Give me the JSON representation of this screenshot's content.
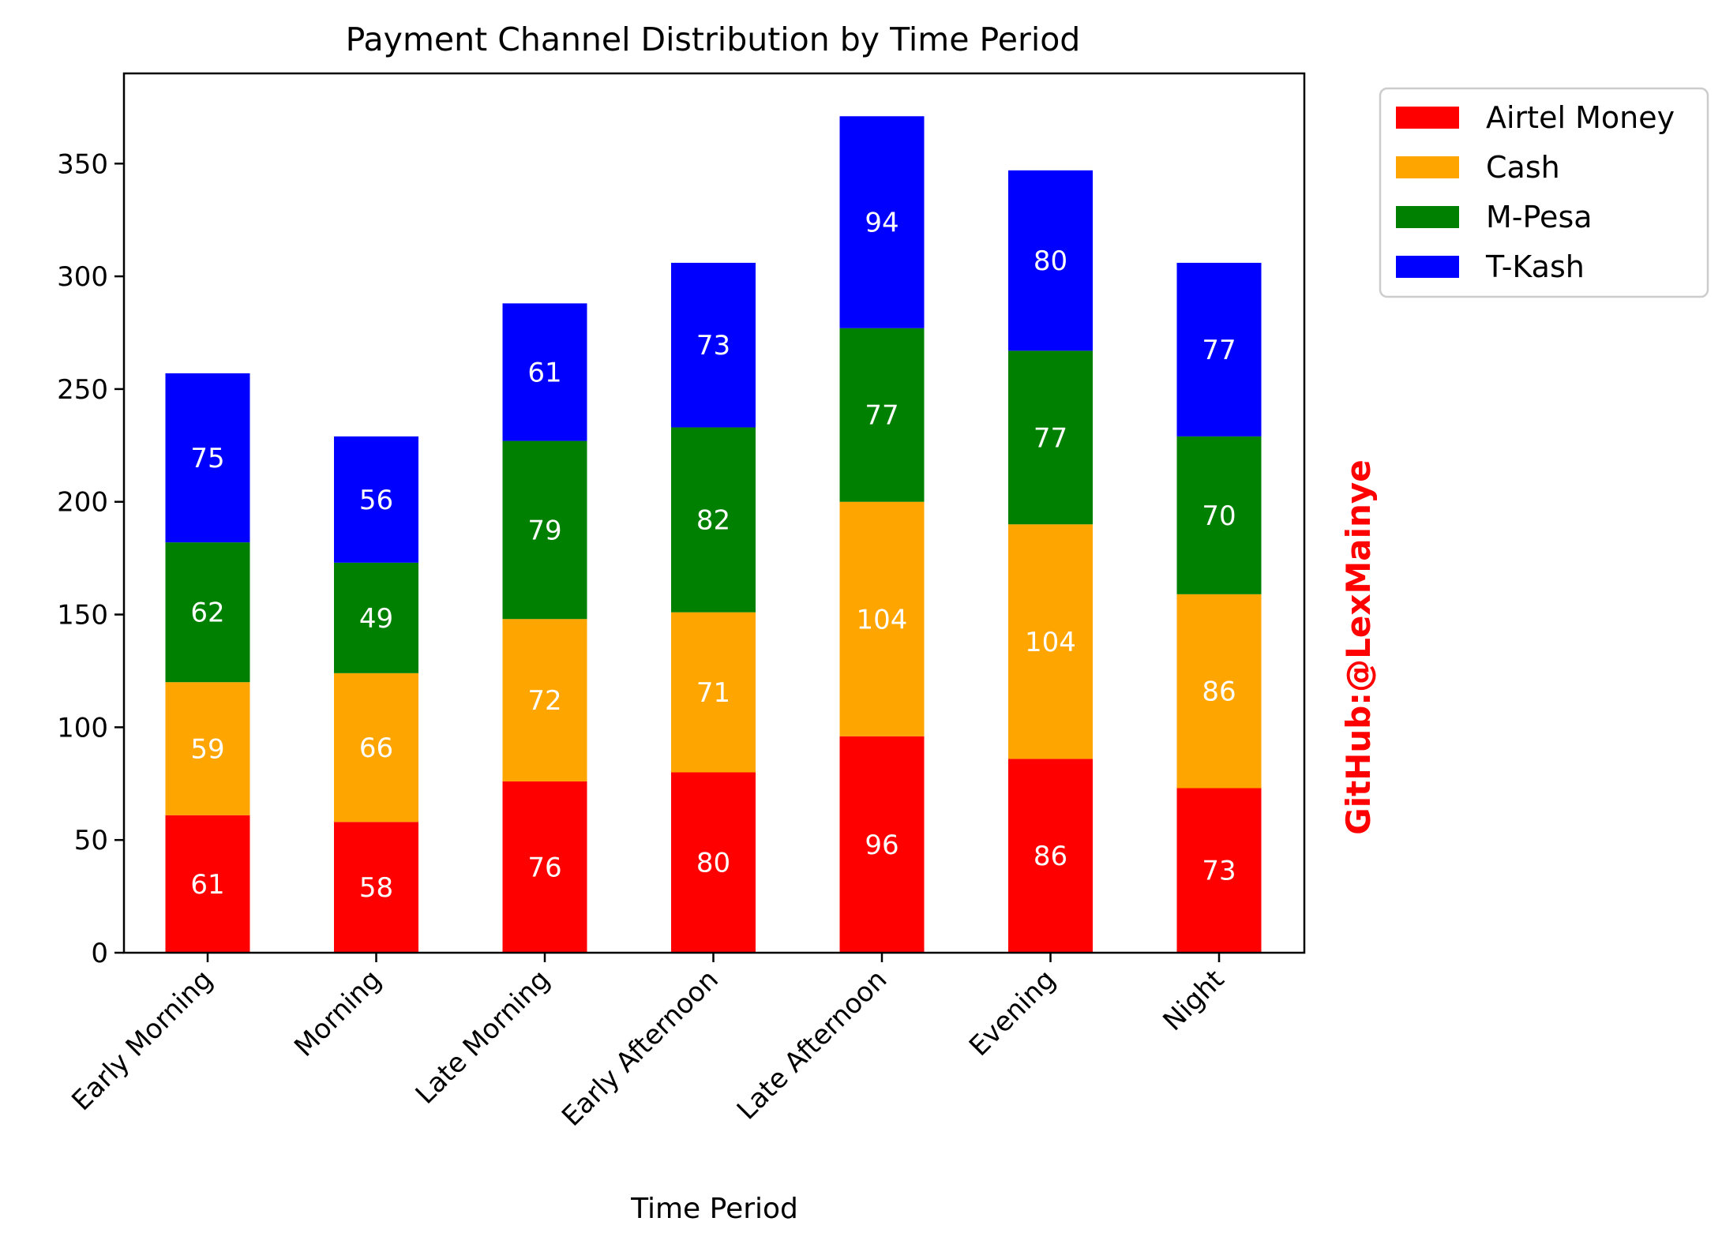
{
  "chart_data": {
    "type": "bar",
    "stacked": true,
    "title": "Payment Channel Distribution by Time Period",
    "xlabel": "Time Period",
    "ylabel": "",
    "ylim": [
      0,
      390
    ],
    "yticks": [
      0,
      50,
      100,
      150,
      200,
      250,
      300,
      350
    ],
    "grid": false,
    "legend_position": "outside-top-right",
    "categories": [
      "Early Morning",
      "Morning",
      "Late Morning",
      "Early Afternoon",
      "Late Afternoon",
      "Evening",
      "Night"
    ],
    "series": [
      {
        "name": "Airtel Money",
        "color": "#ff0000",
        "values": [
          61,
          58,
          76,
          80,
          96,
          86,
          73
        ]
      },
      {
        "name": "Cash",
        "color": "#ffa500",
        "values": [
          59,
          66,
          72,
          71,
          104,
          104,
          86
        ]
      },
      {
        "name": "M-Pesa",
        "color": "#008000",
        "values": [
          62,
          49,
          79,
          82,
          77,
          77,
          70
        ]
      },
      {
        "name": "T-Kash",
        "color": "#0000ff",
        "values": [
          75,
          56,
          61,
          73,
          94,
          80,
          77
        ]
      }
    ]
  },
  "watermark": "GitHub:@LexMainye"
}
